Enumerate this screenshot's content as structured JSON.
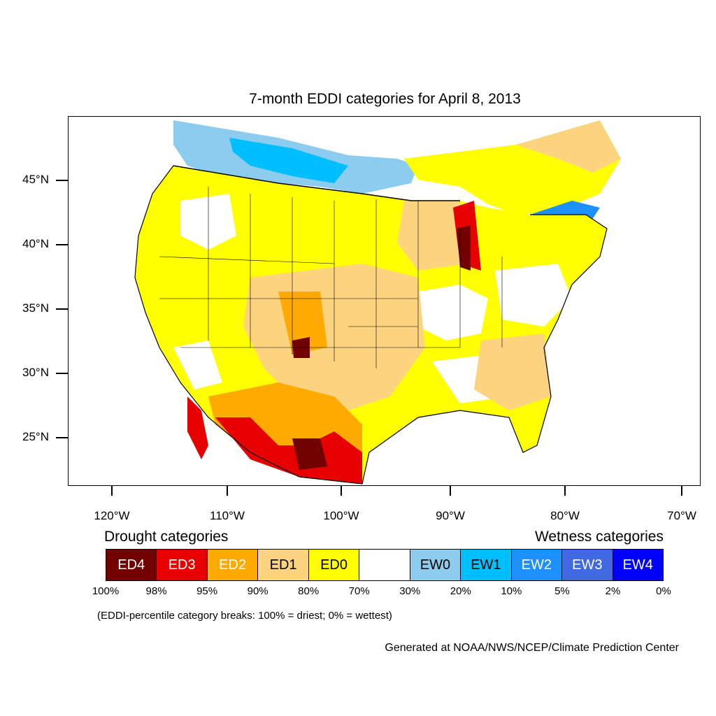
{
  "title": "7-month EDDI categories for April 8, 2013",
  "latitude_labels": [
    "45°N",
    "40°N",
    "35°N",
    "30°N",
    "25°N"
  ],
  "longitude_labels": [
    "120°W",
    "110°W",
    "100°W",
    "90°W",
    "80°W",
    "70°W"
  ],
  "legend": {
    "drought_heading": "Drought categories",
    "wetness_heading": "Wetness categories",
    "categories": [
      {
        "label": "ED4",
        "color": "#730000",
        "text_color": "#ffffff"
      },
      {
        "label": "ED3",
        "color": "#e60000",
        "text_color": "#ffffff"
      },
      {
        "label": "ED2",
        "color": "#ffaa00",
        "text_color": "#ffffff"
      },
      {
        "label": "ED1",
        "color": "#fcd37f",
        "text_color": "#000000"
      },
      {
        "label": "ED0",
        "color": "#ffff00",
        "text_color": "#000000"
      },
      {
        "label": "",
        "color": "#ffffff",
        "text_color": "#000000"
      },
      {
        "label": "EW0",
        "color": "#8ccdef",
        "text_color": "#000000"
      },
      {
        "label": "EW1",
        "color": "#00bfff",
        "text_color": "#000000"
      },
      {
        "label": "EW2",
        "color": "#1d90ff",
        "text_color": "#ffffff"
      },
      {
        "label": "EW3",
        "color": "#4169e1",
        "text_color": "#ffffff"
      },
      {
        "label": "EW4",
        "color": "#0000ff",
        "text_color": "#ffffff"
      }
    ],
    "percentiles": [
      "100%",
      "98%",
      "95%",
      "90%",
      "80%",
      "70%",
      "30%",
      "20%",
      "10%",
      "5%",
      "2%",
      "0%"
    ]
  },
  "note": "(EDDI-percentile category breaks: 100% = driest; 0% = wettest)",
  "credit": "Generated at NOAA/NWS/NCEP/Climate Prediction Center"
}
